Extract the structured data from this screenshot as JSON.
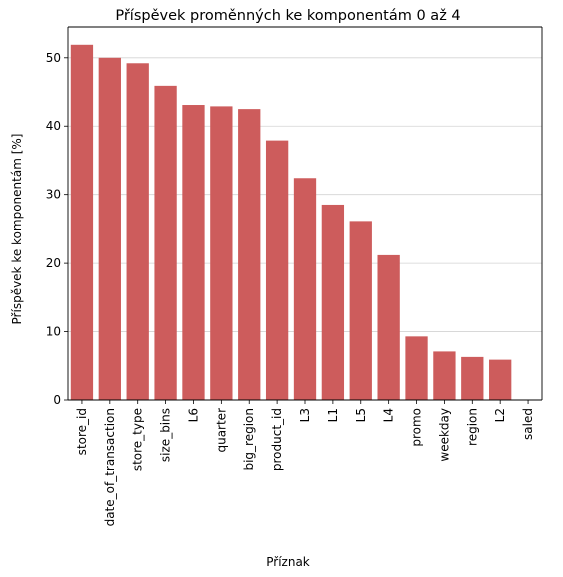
{
  "chart_data": {
    "type": "bar",
    "title": "Příspěvek proměnných ke komponentám 0 až 4",
    "xlabel": "Příznak",
    "ylabel": "Příspěvek ke komponentám [%]",
    "categories": [
      "store_id",
      "date_of_transaction",
      "store_type",
      "size_bins",
      "L6",
      "quarter",
      "big_region",
      "product_id",
      "L3",
      "L1",
      "L5",
      "L4",
      "promo",
      "weekday",
      "region",
      "L2",
      "saled"
    ],
    "values": [
      51.9,
      50.0,
      49.2,
      45.9,
      43.1,
      42.9,
      42.5,
      37.9,
      32.4,
      28.5,
      26.1,
      21.2,
      9.3,
      7.1,
      6.3,
      5.9,
      0.0
    ],
    "ylim": [
      0,
      54.5
    ],
    "yticks": [
      0,
      10,
      20,
      30,
      40,
      50
    ],
    "grid": "horizontal",
    "bar_color": "#cd5c5c",
    "grid_color": "#d3d3d3"
  }
}
